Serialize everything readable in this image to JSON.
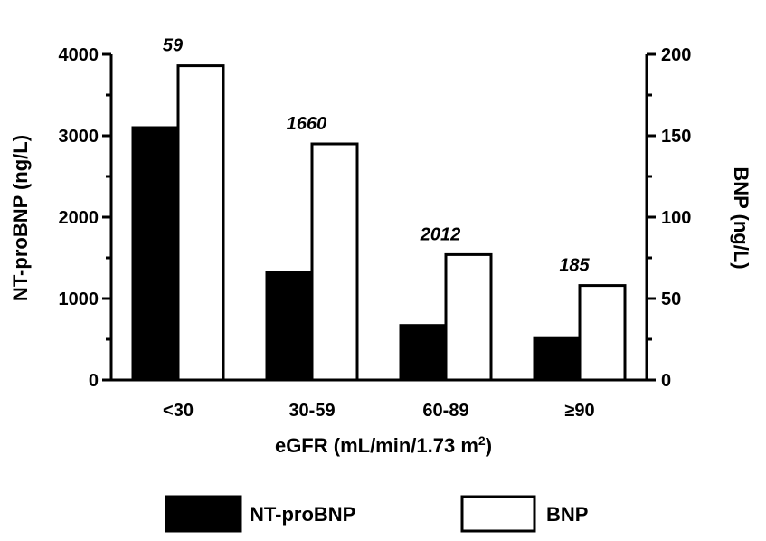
{
  "chart_data": {
    "type": "bar",
    "categories": [
      "<30",
      "30-59",
      "60-89",
      "≥90"
    ],
    "series": [
      {
        "name": "NT-proBNP",
        "axis": "left",
        "values": [
          3100,
          1320,
          670,
          520
        ],
        "fill": "#000000"
      },
      {
        "name": "BNP",
        "axis": "right",
        "values": [
          193,
          145,
          77,
          58
        ],
        "fill": "#ffffff"
      }
    ],
    "annotations": [
      "59",
      "1660",
      "2012",
      "185"
    ],
    "xlabel": "eGFR (mL/min/1.73 m",
    "xlabel_sup": "2",
    "xlabel_end": ")",
    "ylabel_left": "NT-proBNP (ng/L)",
    "ylabel_right": "BNP (ng/L)",
    "ylim_left": [
      0,
      4000
    ],
    "ylim_right": [
      0,
      200
    ],
    "yticks_left": [
      "0",
      "1000",
      "2000",
      "3000",
      "4000"
    ],
    "yticks_right": [
      "0",
      "50",
      "100",
      "150",
      "200"
    ],
    "grid": false,
    "legend_position": "bottom"
  }
}
